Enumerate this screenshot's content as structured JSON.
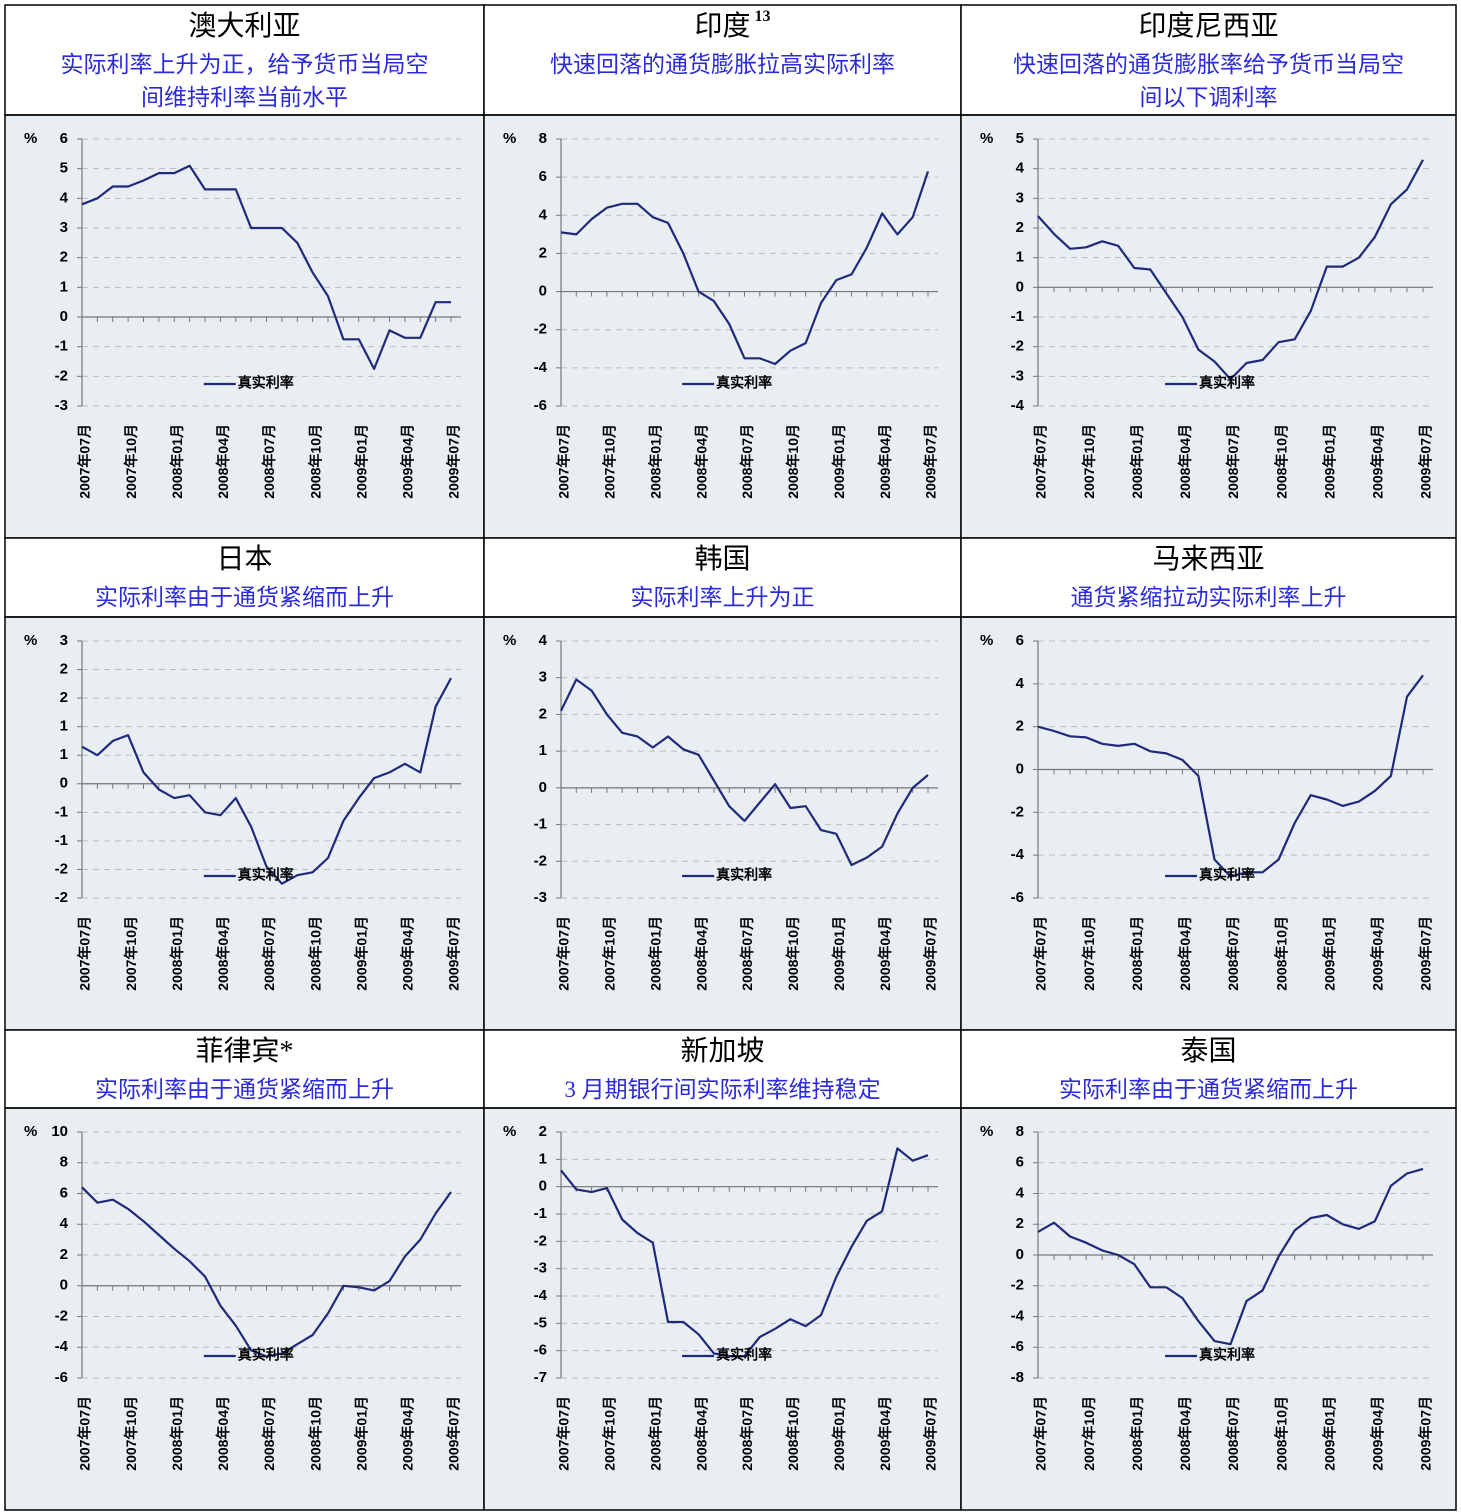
{
  "chart_data": [
    {
      "type": "line",
      "title": "澳大利亚",
      "subtitle": [
        "实际利率上升为正，给予货币当局空",
        "间维持利率当前水平"
      ],
      "unit": "%",
      "categories": [
        "2007年07月",
        null,
        null,
        "2007年10月",
        null,
        null,
        "2008年01月",
        null,
        null,
        "2008年04月",
        null,
        null,
        "2008年07月",
        null,
        null,
        "2008年10月",
        null,
        null,
        "2009年01月",
        null,
        null,
        "2009年04月",
        null,
        null,
        "2009年07月"
      ],
      "series": [
        {
          "name": "真实利率",
          "color": "#1f2a7a",
          "values": [
            3.8,
            4.0,
            4.4,
            4.4,
            4.6,
            4.85,
            4.85,
            5.1,
            4.3,
            4.3,
            4.3,
            3.0,
            3.0,
            3.0,
            2.5,
            1.5,
            0.7,
            -0.75,
            -0.75,
            -1.75,
            -0.45,
            -0.7,
            -0.7,
            0.5,
            0.5
          ]
        }
      ],
      "ylim": [
        -3,
        6
      ],
      "yticks": [
        -3,
        -2,
        -1,
        0,
        1,
        2,
        3,
        4,
        5,
        6
      ],
      "grid": true,
      "legend": "bottom"
    },
    {
      "type": "line",
      "title": "印度",
      "footnote": "13",
      "subtitle": [
        "快速回落的通货膨胀拉高实际利率"
      ],
      "unit": "%",
      "categories": [
        "2007年07月",
        null,
        null,
        "2007年10月",
        null,
        null,
        "2008年01月",
        null,
        null,
        "2008年04月",
        null,
        null,
        "2008年07月",
        null,
        null,
        "2008年10月",
        null,
        null,
        "2009年01月",
        null,
        null,
        "2009年04月",
        null,
        null,
        "2009年07月"
      ],
      "series": [
        {
          "name": "真实利率",
          "color": "#1f2a7a",
          "values": [
            3.1,
            3.0,
            3.8,
            4.4,
            4.6,
            4.6,
            3.9,
            3.6,
            2.0,
            0.0,
            -0.5,
            -1.7,
            -3.5,
            -3.5,
            -3.8,
            -3.1,
            -2.7,
            -0.6,
            0.6,
            0.9,
            2.3,
            4.1,
            3.0,
            3.9,
            6.3
          ]
        }
      ],
      "ylim": [
        -6,
        8
      ],
      "yticks": [
        -6,
        -4,
        -2,
        0,
        2,
        4,
        6,
        8
      ],
      "grid": true,
      "legend": "bottom"
    },
    {
      "type": "line",
      "title": "印度尼西亚",
      "subtitle": [
        "快速回落的通货膨胀率给予货币当局空",
        "间以下调利率"
      ],
      "unit": "%",
      "categories": [
        "2007年07月",
        null,
        null,
        "2007年10月",
        null,
        null,
        "2008年01月",
        null,
        null,
        "2008年04月",
        null,
        null,
        "2008年07月",
        null,
        null,
        "2008年10月",
        null,
        null,
        "2009年01月",
        null,
        null,
        "2009年04月",
        null,
        null,
        "2009年07月"
      ],
      "series": [
        {
          "name": "真实利率",
          "color": "#1f2a7a",
          "values": [
            2.4,
            1.8,
            1.3,
            1.35,
            1.55,
            1.4,
            0.65,
            0.6,
            -0.2,
            -1.0,
            -2.1,
            -2.5,
            -3.1,
            -2.55,
            -2.45,
            -1.85,
            -1.75,
            -0.8,
            0.7,
            0.7,
            1.0,
            1.7,
            2.8,
            3.3,
            4.3
          ]
        }
      ],
      "ylim": [
        -4,
        5
      ],
      "yticks": [
        -4,
        -3,
        -2,
        -1,
        0,
        1,
        2,
        3,
        4,
        5
      ],
      "grid": true,
      "legend": "bottom"
    },
    {
      "type": "line",
      "title": "日本",
      "subtitle": [
        "实际利率由于通货紧缩而上升"
      ],
      "unit": "%",
      "categories": [
        "2007年07月",
        null,
        null,
        "2007年10月",
        null,
        null,
        "2008年01月",
        null,
        null,
        "2008年04月",
        null,
        null,
        "2008年07月",
        null,
        null,
        "2008年10月",
        null,
        null,
        "2009年01月",
        null,
        null,
        "2009年04月",
        null,
        null,
        "2009年07月"
      ],
      "series": [
        {
          "name": "真实利率",
          "color": "#1f2a7a",
          "values": [
            0.65,
            0.5,
            0.75,
            0.85,
            0.2,
            -0.1,
            -0.25,
            -0.2,
            -0.5,
            -0.55,
            -0.25,
            -0.75,
            -1.45,
            -1.75,
            -1.6,
            -1.55,
            -1.3,
            -0.65,
            -0.25,
            0.1,
            0.2,
            0.35,
            0.2,
            1.35,
            1.85
          ]
        }
      ],
      "ylim": [
        -2,
        2.5
      ],
      "yticks": [
        -2,
        {
          "value": -1.5,
          "label": "-2"
        },
        -1,
        {
          "value": -0.5,
          "label": "-1"
        },
        0,
        {
          "value": 0.5,
          "label": "1"
        },
        1,
        {
          "value": 1.5,
          "label": "2"
        },
        2,
        {
          "value": 2.5,
          "label": "3"
        }
      ],
      "grid": true,
      "legend": "bottom"
    },
    {
      "type": "line",
      "title": "韩国",
      "subtitle": [
        "实际利率上升为正"
      ],
      "unit": "%",
      "categories": [
        "2007年07月",
        null,
        null,
        "2007年10月",
        null,
        null,
        "2008年01月",
        null,
        null,
        "2008年04月",
        null,
        null,
        "2008年07月",
        null,
        null,
        "2008年10月",
        null,
        null,
        "2009年01月",
        null,
        null,
        "2009年04月",
        null,
        null,
        "2009年07月"
      ],
      "series": [
        {
          "name": "真实利率",
          "color": "#1f2a7a",
          "values": [
            2.1,
            2.95,
            2.65,
            2.0,
            1.5,
            1.4,
            1.1,
            1.4,
            1.05,
            0.9,
            0.2,
            -0.5,
            -0.9,
            -0.4,
            0.1,
            -0.55,
            -0.5,
            -1.15,
            -1.25,
            -2.1,
            -1.9,
            -1.6,
            -0.7,
            0.0,
            0.35
          ]
        }
      ],
      "ylim": [
        -3,
        4
      ],
      "yticks": [
        -3,
        -2,
        -1,
        0,
        1,
        2,
        3,
        4
      ],
      "grid": true,
      "legend": "bottom"
    },
    {
      "type": "line",
      "title": "马来西亚",
      "subtitle": [
        "通货紧缩拉动实际利率上升"
      ],
      "unit": "%",
      "categories": [
        "2007年07月",
        null,
        null,
        "2007年10月",
        null,
        null,
        "2008年01月",
        null,
        null,
        "2008年04月",
        null,
        null,
        "2008年07月",
        null,
        null,
        "2008年10月",
        null,
        null,
        "2009年01月",
        null,
        null,
        "2009年04月",
        null,
        null,
        "2009年07月"
      ],
      "series": [
        {
          "name": "真实利率",
          "color": "#1f2a7a",
          "values": [
            2.0,
            1.8,
            1.55,
            1.5,
            1.2,
            1.1,
            1.2,
            0.85,
            0.75,
            0.45,
            -0.3,
            -4.2,
            -5.0,
            -4.8,
            -4.8,
            -4.2,
            -2.5,
            -1.2,
            -1.4,
            -1.7,
            -1.5,
            -1.0,
            -0.3,
            3.4,
            4.4
          ]
        }
      ],
      "ylim": [
        -6,
        6
      ],
      "yticks": [
        -6,
        -4,
        -2,
        0,
        2,
        4,
        6
      ],
      "grid": true,
      "legend": "bottom"
    },
    {
      "type": "line",
      "title": "菲律宾*",
      "subtitle": [
        "实际利率由于通货紧缩而上升"
      ],
      "unit": "%",
      "categories": [
        "2007年07月",
        null,
        null,
        "2007年10月",
        null,
        null,
        "2008年01月",
        null,
        null,
        "2008年04月",
        null,
        null,
        "2008年07月",
        null,
        null,
        "2008年10月",
        null,
        null,
        "2009年01月",
        null,
        null,
        "2009年04月",
        null,
        null,
        "2009年07月"
      ],
      "series": [
        {
          "name": "真实利率",
          "color": "#1f2a7a",
          "values": [
            6.4,
            5.4,
            5.6,
            5.0,
            4.2,
            3.3,
            2.4,
            1.6,
            0.6,
            -1.3,
            -2.6,
            -4.2,
            -4.6,
            -4.4,
            -3.8,
            -3.2,
            -1.8,
            0.0,
            -0.1,
            -0.3,
            0.3,
            1.9,
            3.0,
            4.7,
            6.1
          ]
        }
      ],
      "ylim": [
        -6,
        10
      ],
      "yticks": [
        -6,
        -4,
        -2,
        0,
        2,
        4,
        6,
        8,
        10
      ],
      "grid": true,
      "legend": "bottom"
    },
    {
      "type": "line",
      "title": "新加坡",
      "subtitle": [
        "3 月期银行间实际利率维持稳定"
      ],
      "unit": "%",
      "categories": [
        "2007年07月",
        null,
        null,
        "2007年10月",
        null,
        null,
        "2008年01月",
        null,
        null,
        "2008年04月",
        null,
        null,
        "2008年07月",
        null,
        null,
        "2008年10月",
        null,
        null,
        "2009年01月",
        null,
        null,
        "2009年04月",
        null,
        null,
        "2009年07月"
      ],
      "series": [
        {
          "name": "真实利率",
          "color": "#1f2a7a",
          "values": [
            0.6,
            -0.1,
            -0.2,
            -0.05,
            -1.2,
            -1.7,
            -2.05,
            -4.95,
            -4.95,
            -5.4,
            -6.1,
            -6.2,
            -6.2,
            -5.5,
            -5.2,
            -4.85,
            -5.1,
            -4.7,
            -3.3,
            -2.2,
            -1.25,
            -0.9,
            1.4,
            0.95,
            1.15
          ]
        }
      ],
      "ylim": [
        -7,
        2
      ],
      "yticks": [
        -7,
        -6,
        -5,
        -4,
        -3,
        -2,
        -1,
        0,
        1,
        2
      ],
      "grid": true,
      "legend": "bottom"
    },
    {
      "type": "line",
      "title": "泰国",
      "subtitle": [
        "实际利率由于通货紧缩而上升"
      ],
      "unit": "%",
      "categories": [
        "2007年07月",
        null,
        null,
        "2007年10月",
        null,
        null,
        "2008年01月",
        null,
        null,
        "2008年04月",
        null,
        null,
        "2008年07月",
        null,
        null,
        "2008年10月",
        null,
        null,
        "2009年01月",
        null,
        null,
        "2009年04月",
        null,
        null,
        "2009年07月"
      ],
      "series": [
        {
          "name": "真实利率",
          "color": "#1f2a7a",
          "values": [
            1.5,
            2.1,
            1.2,
            0.8,
            0.3,
            0.0,
            -0.6,
            -2.1,
            -2.1,
            -2.8,
            -4.3,
            -5.6,
            -5.8,
            -3.0,
            -2.3,
            -0.1,
            1.6,
            2.4,
            2.6,
            2.0,
            1.7,
            2.2,
            4.5,
            5.3,
            5.6
          ]
        }
      ],
      "ylim": [
        -8,
        8
      ],
      "yticks": [
        -8,
        -6,
        -4,
        -2,
        0,
        2,
        4,
        6,
        8
      ],
      "grid": true,
      "legend": "bottom"
    }
  ]
}
